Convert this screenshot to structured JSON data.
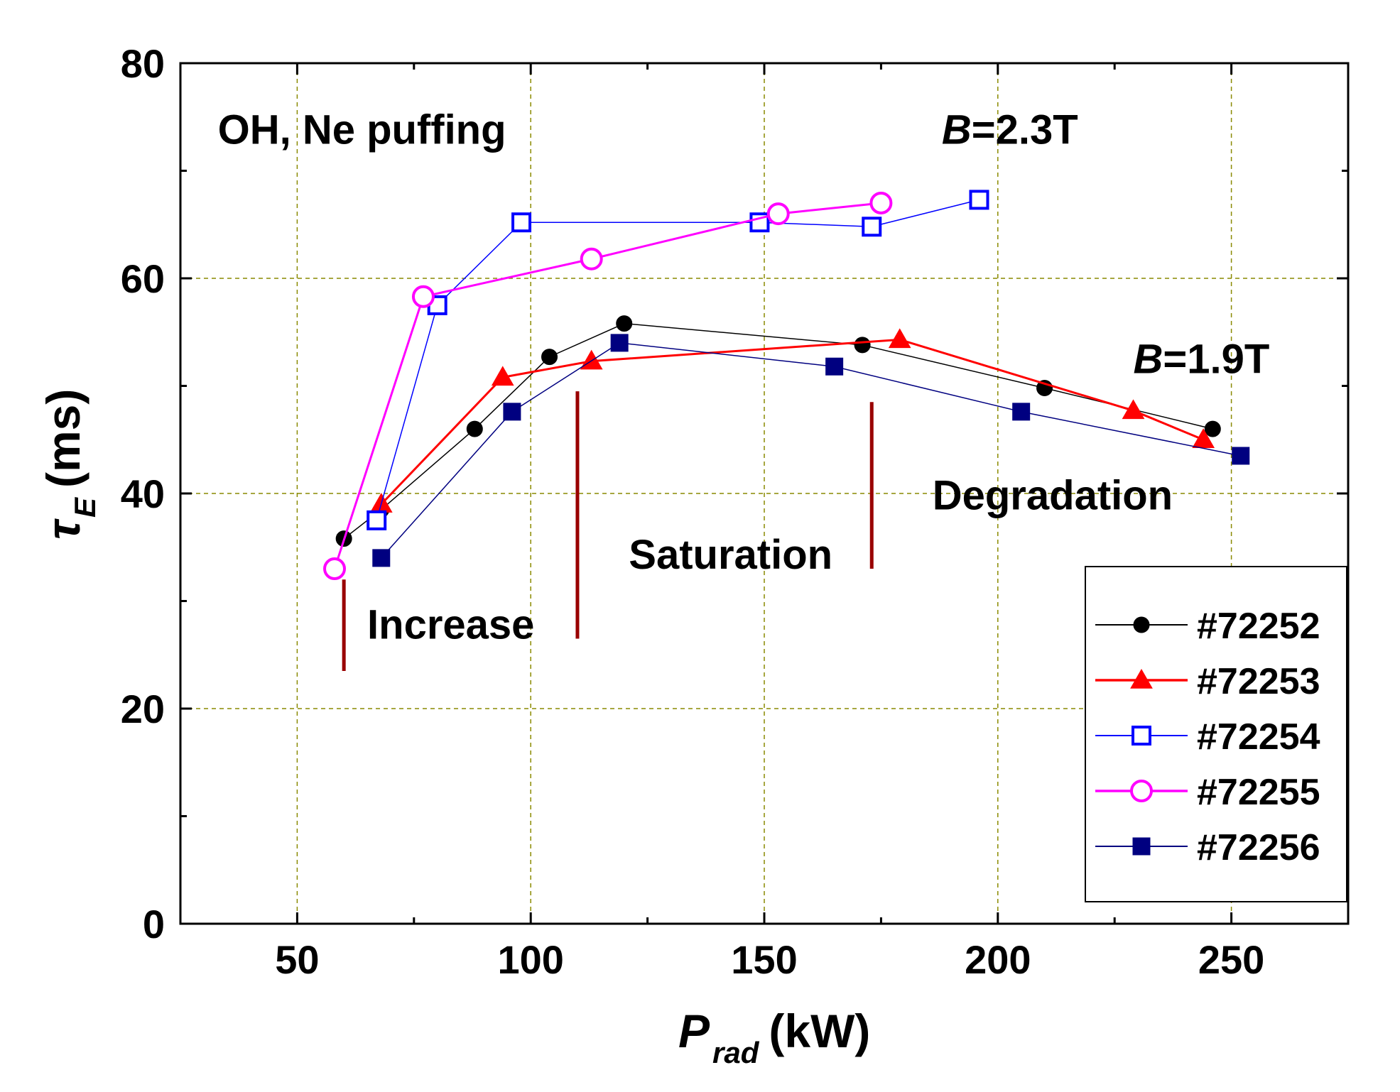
{
  "chart_data": {
    "type": "line",
    "title": "",
    "xlabel": {
      "main": "P",
      "sub": "rad",
      "units": "(kW)"
    },
    "ylabel": {
      "main": "τ",
      "sub": "E",
      "units": "(ms)"
    },
    "xlim": [
      25,
      275
    ],
    "ylim": [
      0,
      80
    ],
    "xticks": [
      50,
      100,
      150,
      200,
      250
    ],
    "yticks": [
      0,
      20,
      40,
      60,
      80
    ],
    "grid": true,
    "legend_position": "bottom-right",
    "series": [
      {
        "name": "#72252",
        "color": "#000000",
        "marker": "filled-circle",
        "line_width": 1.5,
        "x": [
          60,
          68,
          88,
          104,
          120,
          171,
          210,
          246
        ],
        "y": [
          35.8,
          38.5,
          46,
          52.7,
          55.8,
          53.8,
          49.8,
          46
        ]
      },
      {
        "name": "#72253",
        "color": "#ff0000",
        "marker": "filled-triangle",
        "line_width": 3,
        "x": [
          68,
          94,
          113,
          179,
          229,
          244
        ],
        "y": [
          39,
          50.8,
          52.3,
          54.3,
          47.7,
          45
        ]
      },
      {
        "name": "#72254",
        "color": "#0000ff",
        "marker": "open-square",
        "line_width": 1.5,
        "x": [
          67,
          80,
          98,
          149,
          173,
          196
        ],
        "y": [
          37.5,
          57.5,
          65.2,
          65.2,
          64.8,
          67.3
        ]
      },
      {
        "name": "#72255",
        "color": "#ff00ff",
        "marker": "open-circle",
        "line_width": 3,
        "x": [
          58,
          77,
          113,
          153,
          175
        ],
        "y": [
          33,
          58.3,
          61.8,
          66,
          67
        ]
      },
      {
        "name": "#72256",
        "color": "#000080",
        "marker": "filled-square",
        "line_width": 1.5,
        "x": [
          68,
          96,
          119,
          165,
          205,
          252
        ],
        "y": [
          34,
          47.6,
          54,
          51.8,
          47.6,
          43.5
        ]
      }
    ],
    "annotations": [
      {
        "text": "OH, Ne puffing",
        "x": 33,
        "y": 72.5
      },
      {
        "text_italic": "B",
        "text": "=2.3T",
        "x": 188,
        "y": 72.5
      },
      {
        "text_italic": "B",
        "text": "=1.9T",
        "x": 229,
        "y": 51.2
      },
      {
        "text": "Increase",
        "x": 65,
        "y": 26.5
      },
      {
        "text": "Saturation",
        "x": 121,
        "y": 33
      },
      {
        "text": "Degradation",
        "x": 186,
        "y": 38.5
      }
    ],
    "divider_lines": {
      "color": "#990000",
      "lines": [
        {
          "x": 60,
          "y_from": 23.5,
          "y_to": 32
        },
        {
          "x": 110,
          "y_from": 26.5,
          "y_to": 49.5
        },
        {
          "x": 173,
          "y_from": 33,
          "y_to": 48.5
        }
      ]
    }
  }
}
